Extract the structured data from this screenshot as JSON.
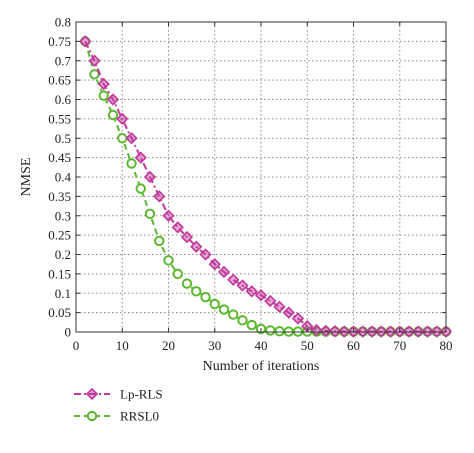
{
  "chart_data": {
    "type": "line",
    "title": "",
    "xlabel": "Number of iterations",
    "ylabel": "NMSE",
    "xlim": [
      0,
      80
    ],
    "ylim": [
      0,
      0.8
    ],
    "xticks": [
      0,
      10,
      20,
      30,
      40,
      50,
      60,
      70,
      80
    ],
    "yticks": [
      0,
      0.05,
      0.1,
      0.15,
      0.2,
      0.25,
      0.3,
      0.35,
      0.4,
      0.45,
      0.5,
      0.55,
      0.6,
      0.65,
      0.7,
      0.75,
      0.8
    ],
    "xtick_labels": [
      "0",
      "10",
      "20",
      "30",
      "40",
      "50",
      "60",
      "70",
      "80"
    ],
    "ytick_labels": [
      "0",
      "0.05",
      "0.1",
      "0.15",
      "0.2",
      "0.25",
      "0.3",
      "0.35",
      "0.4",
      "0.45",
      "0.5",
      "0.55",
      "0.6",
      "0.65",
      "0.7",
      "0.75",
      "0.8"
    ],
    "grid": true,
    "legend_position": "bottom-left",
    "series": [
      {
        "name": "Lp-RLS",
        "color": "#c0399b",
        "marker": "diamond",
        "line_style": "dash-dot",
        "x": [
          2,
          4,
          6,
          8,
          10,
          12,
          14,
          16,
          18,
          20,
          22,
          24,
          26,
          28,
          30,
          32,
          34,
          36,
          38,
          40,
          42,
          44,
          46,
          48,
          50,
          52,
          54,
          56,
          58,
          60,
          62,
          64,
          66,
          68,
          70,
          72,
          74,
          76,
          78,
          80
        ],
        "y": [
          0.75,
          0.7,
          0.64,
          0.6,
          0.55,
          0.5,
          0.45,
          0.4,
          0.35,
          0.3,
          0.27,
          0.245,
          0.22,
          0.2,
          0.175,
          0.155,
          0.135,
          0.12,
          0.105,
          0.095,
          0.08,
          0.065,
          0.05,
          0.035,
          0.015,
          0.005,
          0.003,
          0.002,
          0.001,
          0.001,
          0.001,
          0.001,
          0.001,
          0.001,
          0.001,
          0.001,
          0.001,
          0.001,
          0.001,
          0.001
        ]
      },
      {
        "name": "RRSL0",
        "color": "#5cb82e",
        "marker": "circle",
        "line_style": "dashed",
        "x": [
          2,
          4,
          6,
          8,
          10,
          12,
          14,
          16,
          18,
          20,
          22,
          24,
          26,
          28,
          30,
          32,
          34,
          36,
          38,
          40,
          42,
          44,
          46,
          48,
          50,
          52,
          54,
          56,
          58,
          60,
          62,
          64,
          66,
          68,
          70,
          72,
          74,
          76,
          78,
          80
        ],
        "y": [
          0.75,
          0.665,
          0.61,
          0.56,
          0.5,
          0.435,
          0.37,
          0.305,
          0.235,
          0.185,
          0.15,
          0.125,
          0.105,
          0.09,
          0.072,
          0.058,
          0.045,
          0.03,
          0.018,
          0.008,
          0.004,
          0.002,
          0.001,
          0.001,
          0.001,
          0.001,
          0.001,
          0.001,
          0.001,
          0.001,
          0.001,
          0.001,
          0.001,
          0.001,
          0.001,
          0.001,
          0.001,
          0.001,
          0.001,
          0.001
        ]
      }
    ]
  }
}
